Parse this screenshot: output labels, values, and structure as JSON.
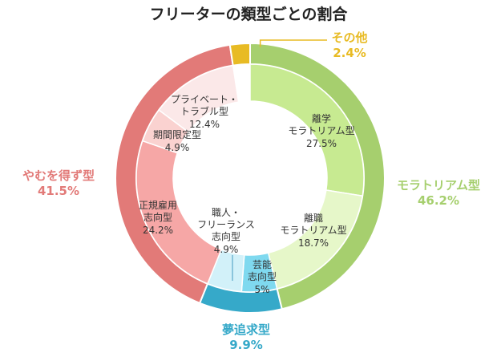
{
  "chart_data": {
    "type": "donut",
    "title": "フリーターの類型ごとの割合",
    "outer": [
      {
        "name": "モラトリアム型",
        "value": 46.2,
        "label": "46.2%",
        "color": "#a6cf6e"
      },
      {
        "name": "夢追求型",
        "value": 9.9,
        "label": "9.9%",
        "color": "#36a9c9"
      },
      {
        "name": "やむを得ず型",
        "value": 41.5,
        "label": "41.5%",
        "color": "#e27a78"
      },
      {
        "name": "その他",
        "value": 2.4,
        "label": "2.4%",
        "color": "#e8bb24"
      }
    ],
    "inner": [
      {
        "name": [
          "離学",
          "モラトリアム型"
        ],
        "value": 27.5,
        "label": "27.5%",
        "color": "#c7ea91"
      },
      {
        "name": [
          "離職",
          "モラトリアム型"
        ],
        "value": 18.7,
        "label": "18.7%",
        "color": "#e6f7c9"
      },
      {
        "name": [
          "芸能",
          "志向型"
        ],
        "value": 5,
        "label": "5%",
        "color": "#7fd9ef"
      },
      {
        "name": [
          "職人・",
          "フリーランス",
          "志向型"
        ],
        "value": 4.9,
        "label": "4.9%",
        "color": "#d2f1f9"
      },
      {
        "name": [
          "正規雇用",
          "志向型"
        ],
        "value": 24.2,
        "label": "24.2%",
        "color": "#f6a7a6"
      },
      {
        "name": [
          "期間限定型"
        ],
        "value": 4.9,
        "label": "4.9%",
        "color": "#fad2d0"
      },
      {
        "name": [
          "プライベート・",
          "トラブル型"
        ],
        "value": 12.4,
        "label": "12.4%",
        "color": "#fbe8e8"
      }
    ],
    "colors": {
      "other_text": "#e8bb24"
    }
  }
}
